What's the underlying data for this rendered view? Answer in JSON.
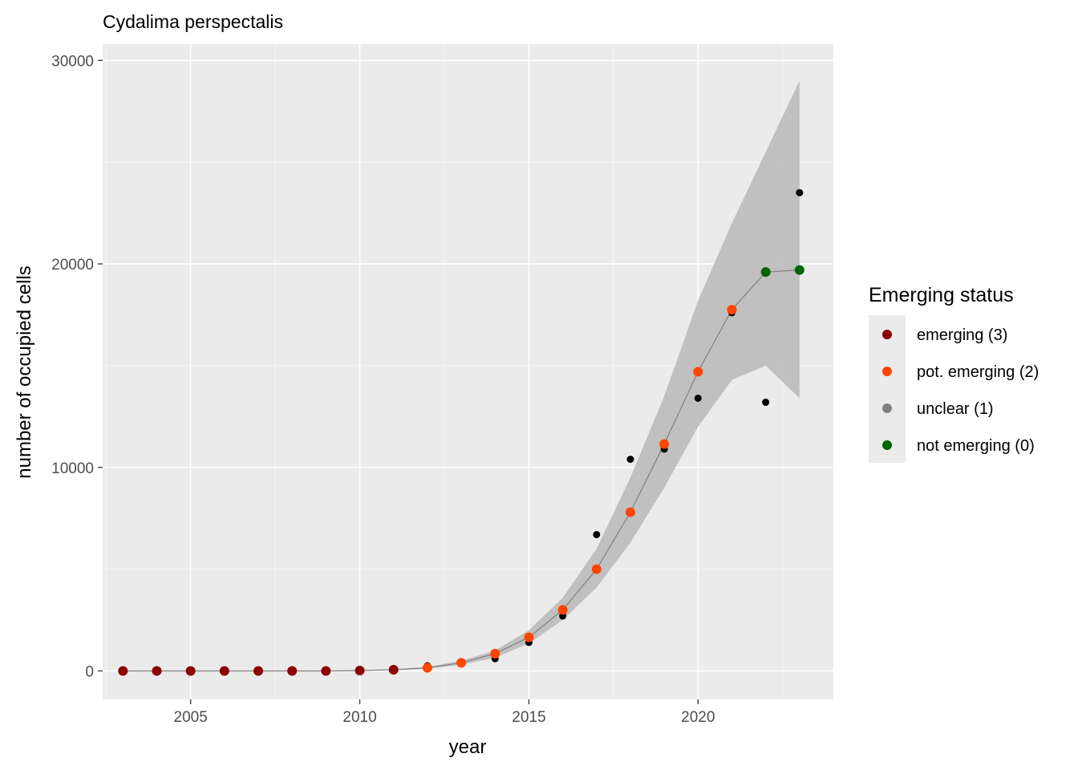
{
  "chart_data": {
    "type": "scatter",
    "title": "Cydalima perspectalis",
    "xlabel": "year",
    "ylabel": "number of occupied cells",
    "xlim": [
      2002.4,
      2024.0
    ],
    "ylim": [
      -1400,
      30800
    ],
    "x_ticks": [
      2005,
      2010,
      2015,
      2020
    ],
    "y_ticks": [
      0,
      10000,
      20000,
      30000
    ],
    "x_tick_labels": [
      "2005",
      "2010",
      "2015",
      "2020"
    ],
    "y_tick_labels": [
      "0",
      "10000",
      "20000",
      "30000"
    ],
    "grid": true,
    "observed": {
      "color": "#000000",
      "x": [
        2003,
        2004,
        2005,
        2006,
        2007,
        2008,
        2009,
        2010,
        2011,
        2012,
        2013,
        2014,
        2015,
        2016,
        2017,
        2018,
        2019,
        2020,
        2021,
        2022,
        2023
      ],
      "y": [
        0,
        0,
        0,
        0,
        0,
        0,
        0,
        30,
        80,
        250,
        400,
        600,
        1400,
        2700,
        6700,
        10400,
        10900,
        13400,
        17600,
        13200,
        23500
      ]
    },
    "fit": {
      "color": "#7f7f7f",
      "ribbon_color": "#bebebe",
      "x": [
        2003,
        2004,
        2005,
        2006,
        2007,
        2008,
        2009,
        2010,
        2011,
        2012,
        2013,
        2014,
        2015,
        2016,
        2017,
        2018,
        2019,
        2020,
        2021,
        2022,
        2023
      ],
      "y": [
        0,
        0,
        0,
        0,
        0,
        0,
        0,
        20,
        60,
        150,
        400,
        850,
        1650,
        3000,
        5000,
        7800,
        11150,
        14700,
        17750,
        19600,
        19700
      ],
      "lower": [
        0,
        0,
        0,
        0,
        0,
        0,
        0,
        10,
        40,
        110,
        300,
        650,
        1350,
        2500,
        4100,
        6300,
        9000,
        12000,
        14300,
        15000,
        13400
      ],
      "upper": [
        0,
        0,
        0,
        0,
        0,
        0,
        0,
        30,
        80,
        200,
        500,
        1000,
        2000,
        3600,
        6000,
        9500,
        13500,
        18200,
        22000,
        25500,
        29000
      ],
      "status": [
        "emerging (3)",
        "emerging (3)",
        "emerging (3)",
        "emerging (3)",
        "emerging (3)",
        "emerging (3)",
        "emerging (3)",
        "emerging (3)",
        "emerging (3)",
        "pot. emerging (2)",
        "pot. emerging (2)",
        "pot. emerging (2)",
        "pot. emerging (2)",
        "pot. emerging (2)",
        "pot. emerging (2)",
        "pot. emerging (2)",
        "pot. emerging (2)",
        "pot. emerging (2)",
        "pot. emerging (2)",
        "not emerging (0)",
        "not emerging (0)"
      ]
    },
    "legend": {
      "title": "Emerging status",
      "position": "right",
      "items": [
        {
          "label": "emerging (3)",
          "color": "#8b0000"
        },
        {
          "label": "pot. emerging (2)",
          "color": "#ff4500"
        },
        {
          "label": "unclear (1)",
          "color": "#808080"
        },
        {
          "label": "not emerging (0)",
          "color": "#006400"
        }
      ]
    }
  }
}
